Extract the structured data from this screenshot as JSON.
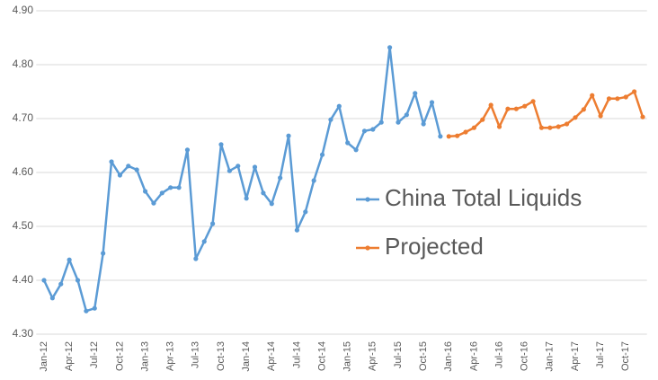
{
  "chart_data": {
    "type": "line",
    "categories": [
      "Jan-12",
      null,
      null,
      "Apr-12",
      null,
      null,
      "Jul-12",
      null,
      null,
      "Oct-12",
      null,
      null,
      "Jan-13",
      null,
      null,
      "Apr-13",
      null,
      null,
      "Jul-13",
      null,
      null,
      "Oct-13",
      null,
      null,
      "Jan-14",
      null,
      null,
      "Apr-14",
      null,
      null,
      "Jul-14",
      null,
      null,
      "Oct-14",
      null,
      null,
      "Jan-15",
      null,
      null,
      "Apr-15",
      null,
      null,
      "Jul-15",
      null,
      null,
      "Oct-15",
      null,
      null,
      "Jan-16",
      null,
      null,
      "Apr-16",
      null,
      null,
      "Jul-16",
      null,
      null,
      "Oct-16",
      null,
      null,
      "Jan-17",
      null,
      null,
      "Apr-17",
      null,
      null,
      "Jul-17",
      null,
      null,
      "Oct-17",
      null,
      null
    ],
    "series": [
      {
        "name": "China Total Liquids",
        "color": "#5b9bd5",
        "values": [
          4.4,
          4.367,
          4.393,
          4.438,
          4.4,
          4.343,
          4.348,
          4.45,
          4.62,
          4.595,
          4.612,
          4.605,
          4.565,
          4.543,
          4.562,
          4.572,
          4.572,
          4.642,
          4.44,
          4.472,
          4.505,
          4.652,
          4.603,
          4.612,
          4.552,
          4.61,
          4.562,
          4.542,
          4.59,
          4.668,
          4.493,
          4.527,
          4.585,
          4.633,
          4.698,
          4.723,
          4.655,
          4.642,
          4.677,
          4.68,
          4.693,
          4.832,
          4.693,
          4.707,
          4.747,
          4.69,
          4.73,
          4.667,
          null,
          null,
          null,
          null,
          null,
          null,
          null,
          null,
          null,
          null,
          null,
          null,
          null,
          null,
          null,
          null,
          null,
          null,
          null,
          null,
          null,
          null,
          null,
          null
        ]
      },
      {
        "name": "Projected",
        "color": "#ed7d31",
        "values": [
          null,
          null,
          null,
          null,
          null,
          null,
          null,
          null,
          null,
          null,
          null,
          null,
          null,
          null,
          null,
          null,
          null,
          null,
          null,
          null,
          null,
          null,
          null,
          null,
          null,
          null,
          null,
          null,
          null,
          null,
          null,
          null,
          null,
          null,
          null,
          null,
          null,
          null,
          null,
          null,
          null,
          null,
          null,
          null,
          null,
          null,
          null,
          null,
          4.667,
          4.668,
          4.675,
          4.683,
          4.698,
          4.725,
          4.685,
          4.718,
          4.718,
          4.723,
          4.732,
          4.683,
          4.683,
          4.685,
          4.69,
          4.702,
          4.717,
          4.743,
          4.705,
          4.737,
          4.737,
          4.74,
          4.75,
          4.703
        ]
      }
    ],
    "ylim": [
      4.3,
      4.9
    ],
    "yticks": [
      {
        "value": 4.3,
        "label": "4.30"
      },
      {
        "value": 4.4,
        "label": "4.40"
      },
      {
        "value": 4.5,
        "label": "4.50"
      },
      {
        "value": 4.6,
        "label": "4.60"
      },
      {
        "value": 4.7,
        "label": "4.70"
      },
      {
        "value": 4.8,
        "label": "4.80"
      },
      {
        "value": 4.9,
        "label": "4.90"
      }
    ],
    "grid": true
  }
}
